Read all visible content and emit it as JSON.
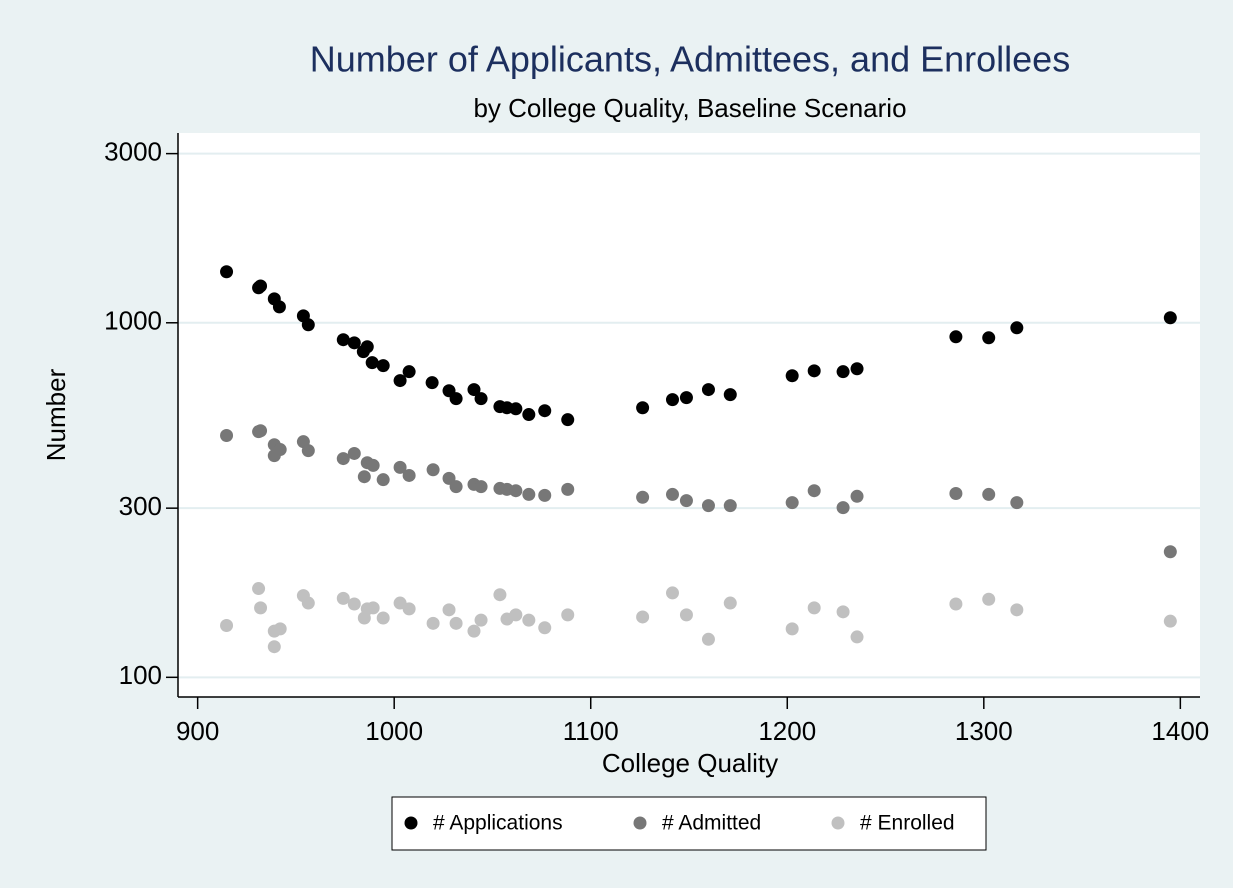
{
  "chart_data": {
    "type": "scatter",
    "title": "Number of Applicants, Admittees, and Enrollees",
    "subtitle": "by College Quality, Baseline Scenario",
    "x_label": "College Quality",
    "y_label": "Number",
    "xlim": [
      890,
      1410
    ],
    "xticks": [
      900,
      1000,
      1100,
      1200,
      1300,
      1400
    ],
    "ylim": [
      88,
      3430
    ],
    "yticks": [
      100,
      300,
      1000,
      3000
    ],
    "ylog": true,
    "grid": true,
    "legend": "bottom",
    "series": [
      {
        "name": "# Applications",
        "color": "#000000",
        "x": [
          914.7,
          931,
          932,
          939,
          941.6,
          953.8,
          956.3,
          974.1,
          979.7,
          984.3,
          986.3,
          988.8,
          994.4,
          1003,
          1007.6,
          1019.3,
          1027.9,
          1031.5,
          1040.6,
          1044.2,
          1053.8,
          1057.4,
          1061.9,
          1068.5,
          1076.6,
          1088.3,
          1126.4,
          1141.6,
          1148.7,
          1159.9,
          1171,
          1202.5,
          1213.7,
          1228.4,
          1235.5,
          1285.8,
          1302.5,
          1316.8,
          1394.9
        ],
        "values": [
          1393,
          1255,
          1270,
          1168,
          1109,
          1046,
          987,
          896,
          878,
          829,
          856,
          772,
          757,
          687,
          728,
          678,
          643,
          611,
          648,
          611,
          580,
          576,
          572,
          551,
          565,
          533,
          576,
          607,
          615,
          648,
          627,
          709,
          732,
          728,
          742,
          913,
          907,
          968,
          1033
        ]
      },
      {
        "name": "# Admitted",
        "color": "#777777",
        "x": [
          914.7,
          931,
          932,
          939,
          939,
          942,
          953.8,
          956.3,
          974.1,
          979.7,
          984.8,
          986.3,
          989.3,
          994.4,
          1003,
          1007.6,
          1019.8,
          1027.9,
          1031.5,
          1040.6,
          1044.2,
          1053.8,
          1057.4,
          1061.9,
          1068.5,
          1076.6,
          1088.3,
          1126.4,
          1141.6,
          1148.7,
          1159.9,
          1171,
          1202.5,
          1213.7,
          1228.4,
          1235.5,
          1285.8,
          1302.5,
          1316.8,
          1394.9
        ],
        "values": [
          481,
          493,
          496,
          453,
          422,
          439,
          462,
          436,
          414,
          428,
          368,
          403,
          396,
          361,
          391,
          371,
          385,
          364,
          345,
          350,
          345,
          341,
          339,
          336,
          328,
          326,
          339,
          322,
          328,
          315,
          305,
          305,
          311,
          336,
          301,
          324,
          330,
          328,
          311,
          226
        ]
      },
      {
        "name": "# Enrolled",
        "color": "#c0c0c0",
        "x": [
          914.7,
          931,
          932,
          939,
          942,
          939,
          953.8,
          956.3,
          974.1,
          979.7,
          984.8,
          986.3,
          989.3,
          994.4,
          1003,
          1007.6,
          1019.8,
          1027.9,
          1031.5,
          1040.6,
          1044.2,
          1053.8,
          1057.4,
          1061.9,
          1068.5,
          1076.6,
          1088.3,
          1126.4,
          1141.6,
          1148.7,
          1159.9,
          1171,
          1202.5,
          1213.7,
          1228.4,
          1235.5,
          1285.8,
          1302.5,
          1316.8,
          1394.9
        ],
        "values": [
          140,
          178,
          157,
          135,
          137,
          122,
          170,
          162,
          167,
          161,
          147,
          156,
          157,
          147,
          162,
          156,
          142,
          155,
          142,
          135,
          145,
          171,
          146,
          150,
          145,
          138,
          150,
          148,
          173,
          150,
          128,
          162,
          137,
          157,
          153,
          130,
          161,
          166,
          155,
          144
        ]
      }
    ]
  }
}
